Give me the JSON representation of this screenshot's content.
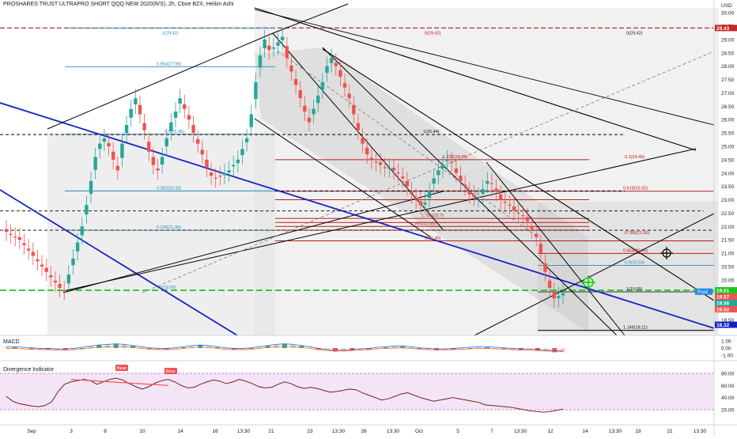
{
  "header": {
    "title": "PROSHARES TRUST ULTRAPRO SHORT QQQ NEW 2020(R/S), 2h, Cboe BZX, Heikin Ashi",
    "currency": "USD"
  },
  "colors": {
    "up": "#26a69a",
    "down": "#ef5350",
    "trend_blue": "#1522c4",
    "fib_red": "#b71c1c",
    "fib_blue": "#2a8ab5",
    "green_dash": "#1ec41e",
    "rsi_band": "#f3e5f5"
  },
  "price_axis": {
    "ticks": [
      "30.00",
      "29.50",
      "29.00",
      "28.50",
      "28.00",
      "27.50",
      "27.00",
      "26.50",
      "26.00",
      "25.50",
      "25.00",
      "24.50",
      "24.00",
      "23.50",
      "23.00",
      "22.50",
      "22.00",
      "21.50",
      "21.00",
      "20.50",
      "20.00",
      "19.50",
      "19.00",
      "18.50"
    ],
    "badges": [
      {
        "text": "29.43",
        "price": 29.43,
        "bg": "#c62828"
      },
      {
        "text": "19.61",
        "price": 19.61,
        "bg": "#1ec41e"
      },
      {
        "text": "19.57",
        "price": 19.57,
        "bg": "#ef5350"
      },
      {
        "text": "19.56",
        "price": 19.56,
        "bg": "#26a69a"
      },
      {
        "text": "19.52",
        "price": 19.52,
        "bg": "#ef5350"
      },
      {
        "text": "18.32",
        "price": 18.32,
        "bg": "#1522c4"
      }
    ],
    "post_label": "Post"
  },
  "time_axis": [
    "Sep",
    "3",
    "8",
    "10",
    "14",
    "16",
    "13:30",
    "21",
    "23",
    "13:30",
    "28",
    "13:30",
    "Oct",
    "5",
    "7",
    "13:30",
    "12",
    "14",
    "13:30",
    "19",
    "21",
    "13:30"
  ],
  "fib_labels": [
    {
      "text": "1(29.42)",
      "color": "blue"
    },
    {
      "text": "0(29.42)",
      "color": "red"
    },
    {
      "text": "0(29.42)",
      "color": "black"
    },
    {
      "text": "0.854(27.98)",
      "color": "blue"
    },
    {
      "text": "0.5(25.45)",
      "color": "blue"
    },
    {
      "text": "1(25.44)",
      "color": "black"
    },
    {
      "text": "1.236(24.50)",
      "color": "red"
    },
    {
      "text": "0.1(24.49)",
      "color": "red"
    },
    {
      "text": "0.382(23.33)",
      "color": "blue"
    },
    {
      "text": "0.618(23.32)",
      "color": "red"
    },
    {
      "text": "1.786(22.?)",
      "color": "red"
    },
    {
      "text": "1.854(22.00)",
      "color": "red"
    },
    {
      "text": "0.236(21.86)",
      "color": "blue"
    },
    {
      "text": "2(21.46)",
      "color": "red"
    },
    {
      "text": "0.786(21.66)",
      "color": "red"
    },
    {
      "text": "0.854(20.99)",
      "color": "red"
    },
    {
      "text": "0.9(20.54)",
      "color": "blue"
    },
    {
      "text": "0(19.50)",
      "color": "blue"
    },
    {
      "text": "1(19.55)",
      "color": "black"
    },
    {
      "text": "1.146(18.11)",
      "color": "black"
    }
  ],
  "macd": {
    "label": "MACD",
    "ticks": [
      "1.00",
      "0.00",
      "-1.00"
    ]
  },
  "divergence": {
    "label": "Divergence Indicator",
    "ticks": [
      "80.00",
      "60.00",
      "40.00",
      "20.00"
    ],
    "bear_tags": [
      "Bear",
      "Bear"
    ]
  },
  "chart_data": {
    "type": "candlestick",
    "ylim": [
      18.1,
      30.3
    ],
    "close_values": [
      21.8,
      21.7,
      21.6,
      21.5,
      21.3,
      21.1,
      20.9,
      20.7,
      20.5,
      20.3,
      20.1,
      19.9,
      19.7,
      19.6,
      20.2,
      20.8,
      21.4,
      22.0,
      22.8,
      23.7,
      24.6,
      25.1,
      25.3,
      25.0,
      24.5,
      24.1,
      25.1,
      25.8,
      26.4,
      26.8,
      26.2,
      25.6,
      24.8,
      24.3,
      24.1,
      24.6,
      25.3,
      25.9,
      26.3,
      26.8,
      26.4,
      26.0,
      25.5,
      25.1,
      24.7,
      24.2,
      23.9,
      23.8,
      23.9,
      24.0,
      24.1,
      24.3,
      24.5,
      24.9,
      25.3,
      26.2,
      27.4,
      28.4,
      29.0,
      28.6,
      28.7,
      28.9,
      29.1,
      28.3,
      27.8,
      27.3,
      26.8,
      26.3,
      25.9,
      26.4,
      26.9,
      27.4,
      28.0,
      28.3,
      28.0,
      27.6,
      27.2,
      26.8,
      26.2,
      25.6,
      25.1,
      24.7,
      24.5,
      24.4,
      24.3,
      24.2,
      24.2,
      24.1,
      24.0,
      23.8,
      23.5,
      23.2,
      23.0,
      22.8,
      22.9,
      23.3,
      23.8,
      24.1,
      24.3,
      24.5,
      24.4,
      24.0,
      23.7,
      23.5,
      23.2,
      23.1,
      23.1,
      23.4,
      23.7,
      23.6,
      23.3,
      23.0,
      22.9,
      22.8,
      22.6,
      22.5,
      22.4,
      22.2,
      21.9,
      21.6,
      21.0,
      20.3,
      19.7,
      19.3,
      19.4,
      19.5
    ],
    "macd_hist": [
      0.1,
      0.1,
      0,
      -0.1,
      -0.2,
      -0.2,
      -0.3,
      -0.3,
      -0.2,
      0,
      0.2,
      0.4,
      0.5,
      0.6,
      0.5,
      0.3,
      0.1,
      -0.1,
      -0.2,
      -0.2,
      -0.1,
      0.1,
      0.3,
      0.4,
      0.3,
      0.1,
      -0.1,
      -0.2,
      -0.2,
      -0.1,
      0.1,
      0.3,
      0.5,
      0.6,
      0.5,
      0.3,
      0.1,
      -0.2,
      -0.4,
      -0.5,
      -0.5,
      -0.4,
      -0.3,
      -0.2,
      0,
      0.1,
      0.2,
      0.2,
      0.1,
      -0.1,
      -0.2,
      -0.3,
      -0.3,
      -0.2,
      -0.1,
      0,
      0.1,
      0.1,
      0,
      -0.1,
      -0.2,
      -0.3,
      -0.3,
      -0.4,
      -0.5,
      -0.6,
      -0.6
    ],
    "rsi": [
      42,
      34,
      30,
      28,
      26,
      25,
      27,
      33,
      50,
      62,
      66,
      68,
      70,
      68,
      62,
      66,
      70,
      72,
      69,
      63,
      58,
      54,
      58,
      64,
      68,
      70,
      66,
      60,
      56,
      57,
      62,
      66,
      69,
      67,
      63,
      66,
      70,
      67,
      63,
      58,
      56,
      57,
      62,
      66,
      63,
      58,
      55,
      57,
      55,
      52,
      49,
      50,
      52,
      54,
      53,
      48,
      44,
      40,
      36,
      38,
      42,
      46,
      48,
      44,
      40,
      37,
      34,
      36,
      38,
      40,
      38,
      36,
      34,
      32,
      28,
      27,
      26,
      25,
      24,
      22,
      20,
      18,
      17,
      16,
      17,
      19,
      21
    ]
  }
}
